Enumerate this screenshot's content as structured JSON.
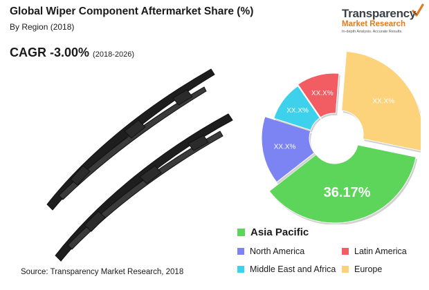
{
  "header": {
    "title": "Global Wiper Component Aftermarket Share (%)",
    "subtitle": "By Region (2018)",
    "cagr_label": "CAGR -3.00%",
    "cagr_period": "(2018-2026)"
  },
  "logo": {
    "line1": "Transparency",
    "line2": "Market Research",
    "tagline": "In-depth Analysis. Accurate Results."
  },
  "chart_data": {
    "type": "pie",
    "style": "exploded donut",
    "title": "Global Wiper Component Aftermarket Share (%)",
    "subtitle": "By Region (2018)",
    "slices": [
      {
        "name": "Europe",
        "value": 27,
        "label": "XX.X%",
        "color": "#fcd27a"
      },
      {
        "name": "Asia Pacific",
        "value": 36.17,
        "label": "36.17%",
        "color": "#5dd55b"
      },
      {
        "name": "North America",
        "value": 15.5,
        "label": "XX.X%",
        "color": "#7b84f2"
      },
      {
        "name": "Middle East and Africa",
        "value": 10.5,
        "label": "XX.X%",
        "color": "#3ed1ec"
      },
      {
        "name": "Latin America",
        "value": 10.83,
        "label": "XX.X%",
        "color": "#f25c63"
      }
    ],
    "legend": {
      "position": "bottom-right",
      "items": [
        {
          "name": "Asia Pacific",
          "color": "#5dd55b",
          "emphasis": true
        },
        {
          "name": "North America",
          "color": "#7b84f2"
        },
        {
          "name": "Latin America",
          "color": "#f25c63"
        },
        {
          "name": "Middle East and Africa",
          "color": "#3ed1ec"
        },
        {
          "name": "Europe",
          "color": "#fcd27a"
        }
      ]
    }
  },
  "footer": {
    "source": "Source: Transparency Market Research, 2018"
  }
}
